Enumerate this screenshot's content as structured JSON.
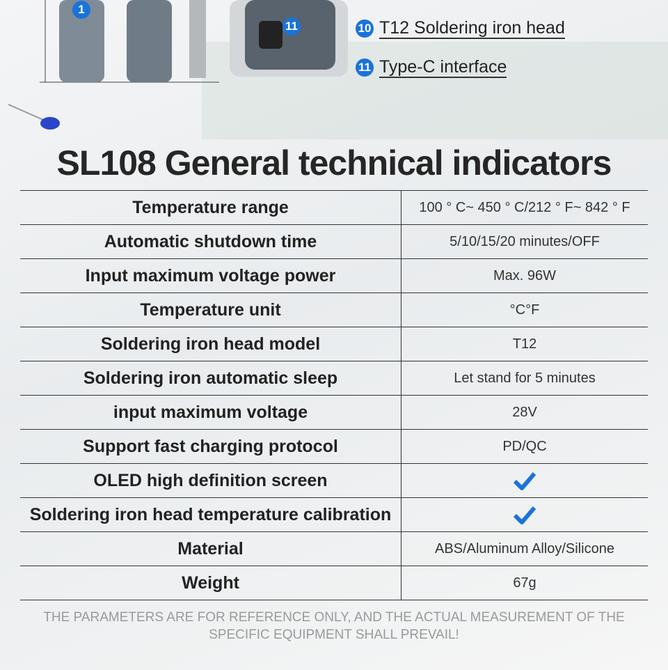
{
  "badges": {
    "left": "1",
    "charger": "11"
  },
  "callouts": [
    {
      "number": "10",
      "text": "T12 Soldering iron head"
    },
    {
      "number": "11",
      "text": "Type-C interface"
    }
  ],
  "title": "SL108 General technical indicators",
  "table": {
    "rows": [
      {
        "label": "Temperature range",
        "value": "100 ° C~ 450 ° C/212 ° F~ 842 ° F"
      },
      {
        "label": "Automatic shutdown time",
        "value": "5/10/15/20 minutes/OFF"
      },
      {
        "label": "Input maximum voltage power",
        "value": "Max. 96W"
      },
      {
        "label": "Temperature unit",
        "value": "°C°F"
      },
      {
        "label": "Soldering iron head model",
        "value": "T12"
      },
      {
        "label": "Soldering iron automatic sleep",
        "value": "Let stand for 5 minutes"
      },
      {
        "label": "input maximum voltage",
        "value": "28V"
      },
      {
        "label": "Support fast charging protocol",
        "value": "PD/QC"
      },
      {
        "label": "OLED high definition screen",
        "check": true
      },
      {
        "label": "Soldering iron head temperature calibration",
        "check": true
      },
      {
        "label": "Material",
        "value": "ABS/Aluminum Alloy/Silicone"
      },
      {
        "label": "Weight",
        "value": "67g"
      }
    ]
  },
  "footer": "THE PARAMETERS ARE FOR REFERENCE ONLY, AND THE ACTUAL MEASUREMENT OF THE SPECIFIC EQUIPMENT SHALL PREVAIL!"
}
